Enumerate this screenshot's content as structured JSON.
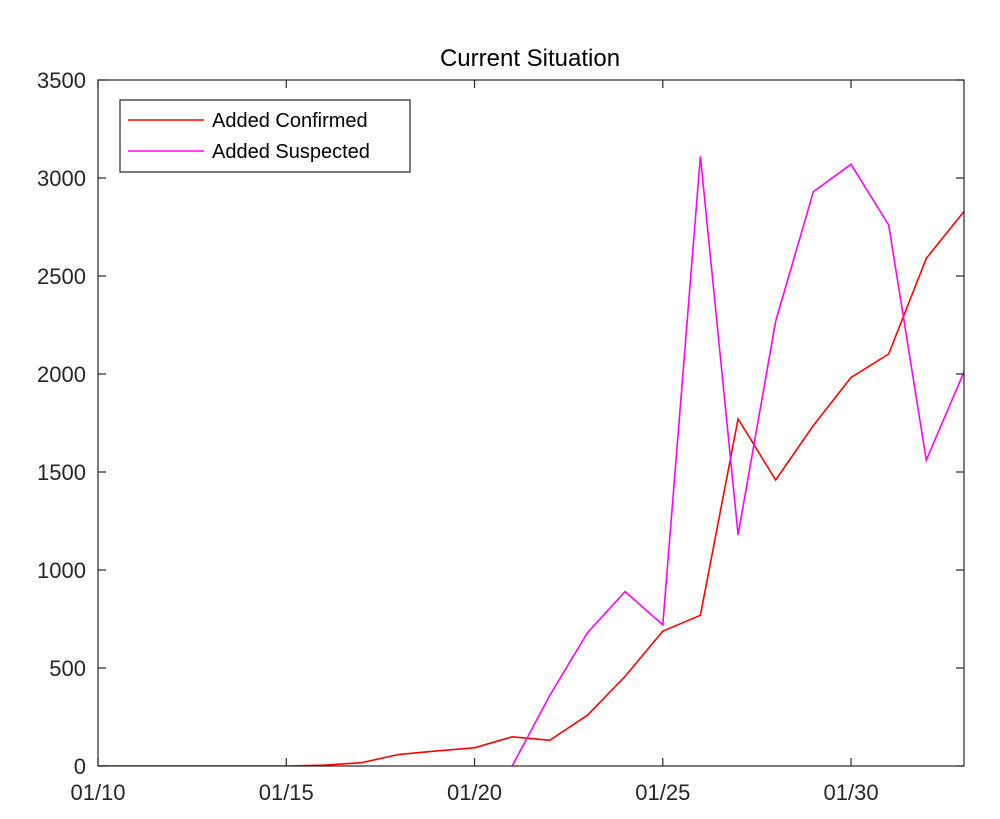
{
  "chart_data": {
    "type": "line",
    "title": "Current Situation",
    "xlabel": "",
    "ylabel": "",
    "x_tick_labels": [
      "01/10",
      "01/15",
      "01/20",
      "01/25",
      "01/30"
    ],
    "x_tick_days": [
      10,
      15,
      20,
      25,
      30
    ],
    "xlim": [
      10,
      33
    ],
    "ylim": [
      0,
      3500
    ],
    "y_ticks": [
      0,
      500,
      1000,
      1500,
      2000,
      2500,
      3000,
      3500
    ],
    "grid": false,
    "legend_position": "top-left",
    "series": [
      {
        "name": "Added Confirmed",
        "color": "#ff0000",
        "x": [
          10,
          11,
          12,
          13,
          14,
          15,
          16,
          17,
          18,
          19,
          20,
          21,
          22,
          23,
          24,
          25,
          26,
          27,
          28,
          29,
          30,
          31,
          32,
          33
        ],
        "values": [
          0,
          0,
          0,
          0,
          0,
          0,
          4,
          17,
          59,
          77,
          93,
          149,
          131,
          259,
          457,
          688,
          769,
          1771,
          1459,
          1737,
          1982,
          2102,
          2590,
          2829
        ]
      },
      {
        "name": "Added Suspected",
        "color": "#ff00ff",
        "x": [
          21,
          22,
          23,
          24,
          25,
          26,
          27,
          28,
          29,
          30,
          31,
          32,
          33
        ],
        "values": [
          0,
          360,
          680,
          890,
          720,
          3110,
          1180,
          2270,
          2930,
          3070,
          2760,
          1560,
          2010
        ]
      }
    ]
  }
}
